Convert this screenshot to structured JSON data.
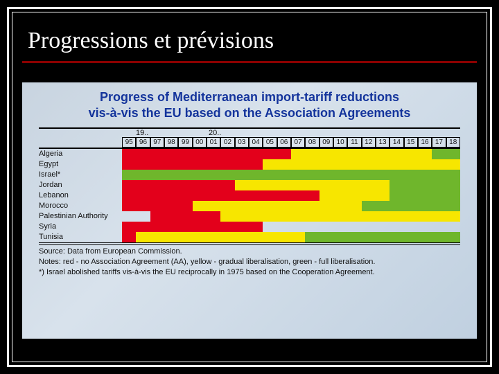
{
  "slide": {
    "title": "Progressions et prévisions"
  },
  "chart": {
    "type": "gantt-heatmap",
    "title_line1": "Progress of Mediterranean import-tariff reductions",
    "title_line2": "vis-à-vis the EU based on the Association Agreements",
    "decade_labels": [
      "19..",
      "20.."
    ],
    "years": [
      "95",
      "96",
      "97",
      "98",
      "99",
      "00",
      "01",
      "02",
      "03",
      "04",
      "05",
      "06",
      "07",
      "08",
      "09",
      "10",
      "11",
      "12",
      "13",
      "14",
      "15",
      "16",
      "17",
      "18"
    ],
    "colors": {
      "none": "transparent",
      "red": "#e3001b",
      "yellow": "#f7e600",
      "green": "#6fb62c",
      "title": "#14349c",
      "background": "#d4dee8"
    },
    "countries": [
      {
        "name": "Algeria",
        "cells": [
          "red",
          "red",
          "red",
          "red",
          "red",
          "red",
          "red",
          "red",
          "red",
          "red",
          "red",
          "red",
          "yellow",
          "yellow",
          "yellow",
          "yellow",
          "yellow",
          "yellow",
          "yellow",
          "yellow",
          "yellow",
          "yellow",
          "green",
          "green"
        ]
      },
      {
        "name": "Egypt",
        "cells": [
          "red",
          "red",
          "red",
          "red",
          "red",
          "red",
          "red",
          "red",
          "red",
          "red",
          "yellow",
          "yellow",
          "yellow",
          "yellow",
          "yellow",
          "yellow",
          "yellow",
          "yellow",
          "yellow",
          "yellow",
          "yellow",
          "yellow",
          "yellow",
          "yellow"
        ]
      },
      {
        "name": "Israel*",
        "cells": [
          "green",
          "green",
          "green",
          "green",
          "green",
          "green",
          "green",
          "green",
          "green",
          "green",
          "green",
          "green",
          "green",
          "green",
          "green",
          "green",
          "green",
          "green",
          "green",
          "green",
          "green",
          "green",
          "green",
          "green"
        ]
      },
      {
        "name": "Jordan",
        "cells": [
          "red",
          "red",
          "red",
          "red",
          "red",
          "red",
          "red",
          "red",
          "yellow",
          "yellow",
          "yellow",
          "yellow",
          "yellow",
          "yellow",
          "yellow",
          "yellow",
          "yellow",
          "yellow",
          "yellow",
          "green",
          "green",
          "green",
          "green",
          "green"
        ]
      },
      {
        "name": "Lebanon",
        "cells": [
          "red",
          "red",
          "red",
          "red",
          "red",
          "red",
          "red",
          "red",
          "red",
          "red",
          "red",
          "red",
          "red",
          "red",
          "yellow",
          "yellow",
          "yellow",
          "yellow",
          "yellow",
          "green",
          "green",
          "green",
          "green",
          "green"
        ]
      },
      {
        "name": "Morocco",
        "cells": [
          "red",
          "red",
          "red",
          "red",
          "red",
          "yellow",
          "yellow",
          "yellow",
          "yellow",
          "yellow",
          "yellow",
          "yellow",
          "yellow",
          "yellow",
          "yellow",
          "yellow",
          "yellow",
          "green",
          "green",
          "green",
          "green",
          "green",
          "green",
          "green"
        ]
      },
      {
        "name": "Palestinian Authority",
        "cells": [
          "none",
          "none",
          "red",
          "red",
          "red",
          "red",
          "red",
          "yellow",
          "yellow",
          "yellow",
          "yellow",
          "yellow",
          "yellow",
          "yellow",
          "yellow",
          "yellow",
          "yellow",
          "yellow",
          "yellow",
          "yellow",
          "yellow",
          "yellow",
          "yellow",
          "yellow"
        ]
      },
      {
        "name": "Syria",
        "cells": [
          "red",
          "red",
          "red",
          "red",
          "red",
          "red",
          "red",
          "red",
          "red",
          "red",
          "none",
          "none",
          "none",
          "none",
          "none",
          "none",
          "none",
          "none",
          "none",
          "none",
          "none",
          "none",
          "none",
          "none"
        ]
      },
      {
        "name": "Tunisia",
        "cells": [
          "red",
          "yellow",
          "yellow",
          "yellow",
          "yellow",
          "yellow",
          "yellow",
          "yellow",
          "yellow",
          "yellow",
          "yellow",
          "yellow",
          "yellow",
          "green",
          "green",
          "green",
          "green",
          "green",
          "green",
          "green",
          "green",
          "green",
          "green",
          "green"
        ]
      }
    ],
    "notes_line1": "Source: Data from European Commission.",
    "notes_line2": "Notes: red - no Association Agreement (AA), yellow - gradual liberalisation, green - full liberalisation.",
    "notes_line3": "*) Israel abolished tariffs vis-à-vis the EU reciprocally in 1975 based on the Cooperation Agreement."
  }
}
